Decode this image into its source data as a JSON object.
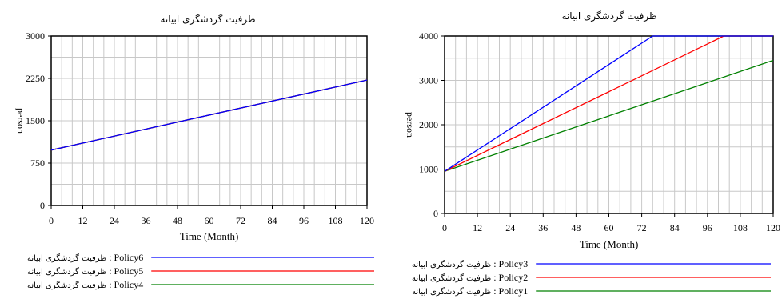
{
  "chart_data": [
    {
      "type": "line",
      "title": "ظرفیت گردشگری ابیانه",
      "xlabel": "Time (Month)",
      "ylabel": "person",
      "xlim": [
        0,
        120
      ],
      "ylim": [
        0,
        3000
      ],
      "x_ticks": [
        "0",
        "12",
        "24",
        "36",
        "48",
        "60",
        "72",
        "84",
        "96",
        "108",
        "120"
      ],
      "y_ticks": [
        "0",
        "750",
        "1500",
        "2250",
        "3000"
      ],
      "grid": true,
      "legend_position": "bottom",
      "series": [
        {
          "name": "Policy6",
          "legend_prefix": "ظرفیت گردشگری ابیانه",
          "color": "#0000ff",
          "x": [
            0,
            120
          ],
          "values": [
            980,
            2220
          ]
        },
        {
          "name": "Policy5",
          "legend_prefix": "ظرفیت گردشگری ابیانه",
          "color": "#ff0000",
          "x": [
            0,
            120
          ],
          "values": [
            980,
            2220
          ]
        },
        {
          "name": "Policy4",
          "legend_prefix": "ظرفیت گردشگری ابیانه",
          "color": "#008000",
          "x": [
            0,
            120
          ],
          "values": [
            980,
            2220
          ]
        }
      ]
    },
    {
      "type": "line",
      "title": "ظرفیت گردشگری ابیانه",
      "xlabel": "Time (Month)",
      "ylabel": "person",
      "xlim": [
        0,
        120
      ],
      "ylim": [
        0,
        4000
      ],
      "x_ticks": [
        "0",
        "12",
        "24",
        "36",
        "48",
        "60",
        "72",
        "84",
        "96",
        "108",
        "120"
      ],
      "y_ticks": [
        "0",
        "1000",
        "2000",
        "3000",
        "4000"
      ],
      "grid": true,
      "legend_position": "bottom",
      "series": [
        {
          "name": "Policy3",
          "legend_prefix": "ظرفیت گردشگری ابیانه",
          "color": "#0000ff",
          "x": [
            0,
            76,
            120
          ],
          "values": [
            950,
            4100,
            4100
          ]
        },
        {
          "name": "Policy2",
          "legend_prefix": "ظرفیت گردشگری ابیانه",
          "color": "#ff0000",
          "x": [
            0,
            102,
            120
          ],
          "values": [
            950,
            4100,
            4100
          ]
        },
        {
          "name": "Policy1",
          "legend_prefix": "ظرفیت گردشگری ابیانه",
          "color": "#008000",
          "x": [
            0,
            120
          ],
          "values": [
            950,
            3450
          ]
        }
      ]
    }
  ]
}
